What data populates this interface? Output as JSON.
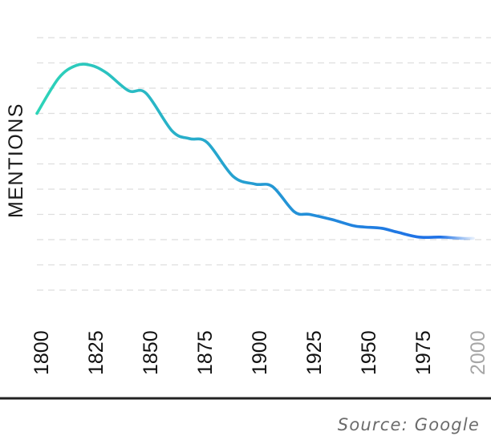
{
  "chart_data": {
    "type": "line",
    "xlabel": "",
    "ylabel": "MENTIONS",
    "x_ticks": [
      "1800",
      "1825",
      "1850",
      "1875",
      "1900",
      "1925",
      "1950",
      "1975",
      "2000"
    ],
    "xlim": [
      1800,
      2000
    ],
    "ylim": [
      0,
      10
    ],
    "grid": true,
    "series": [
      {
        "x": [
          1800,
          1810,
          1818,
          1825,
          1832,
          1842,
          1850,
          1862,
          1870,
          1878,
          1890,
          1900,
          1908,
          1918,
          1925,
          1935,
          1945,
          1950,
          1958,
          1965,
          1975,
          1985,
          1995,
          2000
        ],
        "values": [
          7.0,
          8.4,
          8.9,
          8.9,
          8.6,
          7.9,
          7.8,
          6.3,
          6.0,
          5.85,
          4.5,
          4.2,
          4.1,
          3.1,
          3.0,
          2.8,
          2.55,
          2.5,
          2.45,
          2.3,
          2.1,
          2.1,
          2.05,
          2.05
        ]
      }
    ],
    "colors": {
      "start": "#2dd4b8",
      "end": "#1f72e6",
      "fade_start_year": 1975
    }
  },
  "source": "Source: Google"
}
